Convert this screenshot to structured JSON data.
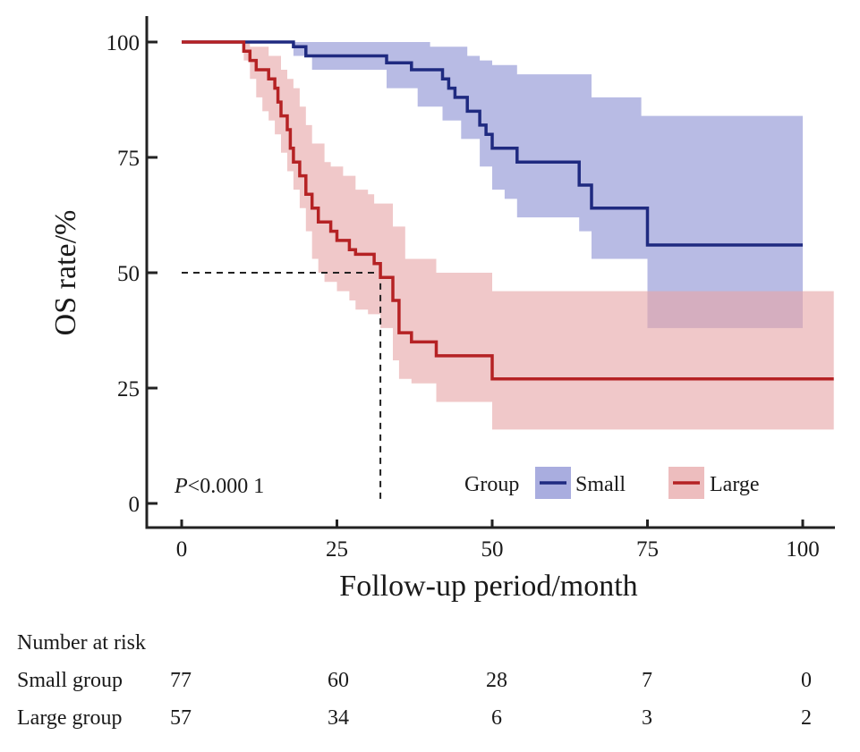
{
  "chart_data": {
    "type": "line",
    "subtype": "kaplan-meier",
    "xlabel": "Follow-up period/month",
    "ylabel": "OS rate/%",
    "xlim": [
      0,
      105
    ],
    "ylim": [
      0,
      100
    ],
    "xticks": [
      "0",
      "25",
      "50",
      "75",
      "100"
    ],
    "yticks": [
      "0",
      "25",
      "50",
      "75",
      "100"
    ],
    "grid": false,
    "legend": {
      "title": "Group",
      "placement": "bottom-right"
    },
    "annotation": {
      "p_label": "P",
      "p_value": "<0.000 1"
    },
    "median_reference": {
      "x": 32,
      "y": 50
    },
    "series": [
      {
        "name": "Small",
        "color": "#1f2a80",
        "ci_color": "#8c92d4",
        "curve": [
          [
            0,
            100
          ],
          [
            18,
            100
          ],
          [
            18,
            99
          ],
          [
            20,
            99
          ],
          [
            20,
            97
          ],
          [
            33,
            97
          ],
          [
            33,
            95.5
          ],
          [
            37,
            95.5
          ],
          [
            37,
            94
          ],
          [
            42,
            94
          ],
          [
            42,
            92
          ],
          [
            43,
            92
          ],
          [
            43,
            90
          ],
          [
            44,
            90
          ],
          [
            44,
            88
          ],
          [
            46,
            88
          ],
          [
            46,
            85
          ],
          [
            48,
            85
          ],
          [
            48,
            82
          ],
          [
            49,
            82
          ],
          [
            49,
            80
          ],
          [
            50,
            80
          ],
          [
            50,
            77
          ],
          [
            54,
            77
          ],
          [
            54,
            74
          ],
          [
            64,
            74
          ],
          [
            64,
            69
          ],
          [
            66,
            69
          ],
          [
            66,
            64
          ],
          [
            75,
            64
          ],
          [
            75,
            56
          ],
          [
            100,
            56
          ]
        ],
        "ci_upper": [
          [
            0,
            100
          ],
          [
            18,
            100
          ],
          [
            18,
            100
          ],
          [
            40,
            100
          ],
          [
            40,
            99
          ],
          [
            46,
            99
          ],
          [
            46,
            97
          ],
          [
            48,
            97
          ],
          [
            48,
            96
          ],
          [
            50,
            96
          ],
          [
            50,
            95
          ],
          [
            54,
            95
          ],
          [
            54,
            93
          ],
          [
            66,
            93
          ],
          [
            66,
            88
          ],
          [
            74,
            88
          ],
          [
            74,
            84
          ],
          [
            100,
            84
          ],
          [
            100,
            82
          ]
        ],
        "ci_lower": [
          [
            0,
            100
          ],
          [
            18,
            100
          ],
          [
            18,
            97
          ],
          [
            21,
            97
          ],
          [
            21,
            94
          ],
          [
            33,
            94
          ],
          [
            33,
            90
          ],
          [
            38,
            90
          ],
          [
            38,
            86
          ],
          [
            42,
            86
          ],
          [
            42,
            83
          ],
          [
            45,
            83
          ],
          [
            45,
            79
          ],
          [
            48,
            79
          ],
          [
            48,
            73
          ],
          [
            50,
            73
          ],
          [
            50,
            68
          ],
          [
            52,
            68
          ],
          [
            52,
            66
          ],
          [
            54,
            66
          ],
          [
            54,
            62
          ],
          [
            64,
            62
          ],
          [
            64,
            59
          ],
          [
            66,
            59
          ],
          [
            66,
            53
          ],
          [
            75,
            53
          ],
          [
            75,
            38
          ],
          [
            100,
            38
          ]
        ]
      },
      {
        "name": "Large",
        "color": "#b52224",
        "ci_color": "#e7a7a8",
        "curve": [
          [
            0,
            100
          ],
          [
            10,
            100
          ],
          [
            10,
            98
          ],
          [
            11,
            98
          ],
          [
            11,
            96
          ],
          [
            12,
            96
          ],
          [
            12,
            94
          ],
          [
            14,
            94
          ],
          [
            14,
            92
          ],
          [
            15,
            92
          ],
          [
            15,
            90
          ],
          [
            15.5,
            90
          ],
          [
            15.5,
            87
          ],
          [
            16,
            87
          ],
          [
            16,
            84
          ],
          [
            17,
            84
          ],
          [
            17,
            81
          ],
          [
            17.5,
            81
          ],
          [
            17.5,
            77
          ],
          [
            18,
            77
          ],
          [
            18,
            74
          ],
          [
            19,
            74
          ],
          [
            19,
            71
          ],
          [
            20,
            71
          ],
          [
            20,
            67
          ],
          [
            21,
            67
          ],
          [
            21,
            64
          ],
          [
            22,
            64
          ],
          [
            22,
            61
          ],
          [
            24,
            61
          ],
          [
            24,
            59
          ],
          [
            25,
            59
          ],
          [
            25,
            57
          ],
          [
            27,
            57
          ],
          [
            27,
            55
          ],
          [
            28,
            55
          ],
          [
            28,
            54
          ],
          [
            31,
            54
          ],
          [
            31,
            52
          ],
          [
            32,
            52
          ],
          [
            32,
            49
          ],
          [
            34,
            49
          ],
          [
            34,
            44
          ],
          [
            35,
            44
          ],
          [
            35,
            37
          ],
          [
            37,
            37
          ],
          [
            37,
            35
          ],
          [
            41,
            35
          ],
          [
            41,
            32
          ],
          [
            50,
            32
          ],
          [
            50,
            27
          ],
          [
            105,
            27
          ]
        ],
        "ci_upper": [
          [
            0,
            100
          ],
          [
            10,
            100
          ],
          [
            11,
            100
          ],
          [
            11,
            99
          ],
          [
            14,
            99
          ],
          [
            14,
            97
          ],
          [
            16,
            97
          ],
          [
            16,
            94
          ],
          [
            17,
            94
          ],
          [
            17,
            92
          ],
          [
            18,
            92
          ],
          [
            18,
            90
          ],
          [
            19,
            90
          ],
          [
            19,
            86
          ],
          [
            20,
            86
          ],
          [
            20,
            82
          ],
          [
            21,
            82
          ],
          [
            21,
            78
          ],
          [
            23,
            78
          ],
          [
            23,
            74
          ],
          [
            24,
            74
          ],
          [
            24,
            73
          ],
          [
            26,
            73
          ],
          [
            26,
            71
          ],
          [
            28,
            71
          ],
          [
            28,
            68
          ],
          [
            30,
            68
          ],
          [
            30,
            67
          ],
          [
            31,
            67
          ],
          [
            31,
            65
          ],
          [
            34,
            65
          ],
          [
            34,
            60
          ],
          [
            36,
            60
          ],
          [
            36,
            53
          ],
          [
            41,
            53
          ],
          [
            41,
            50
          ],
          [
            50,
            50
          ],
          [
            50,
            46
          ],
          [
            105,
            46
          ]
        ],
        "ci_lower": [
          [
            0,
            100
          ],
          [
            10,
            100
          ],
          [
            10,
            96
          ],
          [
            11,
            96
          ],
          [
            11,
            92
          ],
          [
            12,
            92
          ],
          [
            12,
            88
          ],
          [
            13,
            88
          ],
          [
            13,
            85
          ],
          [
            14,
            85
          ],
          [
            14,
            83
          ],
          [
            15,
            83
          ],
          [
            15,
            80
          ],
          [
            16,
            80
          ],
          [
            16,
            76
          ],
          [
            17,
            76
          ],
          [
            17,
            72
          ],
          [
            18,
            72
          ],
          [
            18,
            68
          ],
          [
            19,
            68
          ],
          [
            19,
            64
          ],
          [
            20,
            64
          ],
          [
            20,
            59
          ],
          [
            21,
            59
          ],
          [
            21,
            53
          ],
          [
            22,
            53
          ],
          [
            22,
            50
          ],
          [
            23,
            50
          ],
          [
            23,
            48
          ],
          [
            25,
            48
          ],
          [
            25,
            46
          ],
          [
            27,
            46
          ],
          [
            27,
            44
          ],
          [
            28,
            44
          ],
          [
            28,
            42
          ],
          [
            30,
            42
          ],
          [
            30,
            41
          ],
          [
            32,
            41
          ],
          [
            32,
            38
          ],
          [
            34,
            38
          ],
          [
            34,
            31
          ],
          [
            35,
            31
          ],
          [
            35,
            27
          ],
          [
            37,
            27
          ],
          [
            37,
            26
          ],
          [
            41,
            26
          ],
          [
            41,
            22
          ],
          [
            50,
            22
          ],
          [
            50,
            16
          ],
          [
            105,
            16
          ]
        ]
      }
    ]
  },
  "risk_table": {
    "title": "Number at risk",
    "rows": [
      {
        "label": "Small group",
        "values": [
          "77",
          "60",
          "28",
          "7",
          "0"
        ]
      },
      {
        "label": "Large group",
        "values": [
          "57",
          "34",
          "6",
          "3",
          "2"
        ]
      }
    ]
  }
}
